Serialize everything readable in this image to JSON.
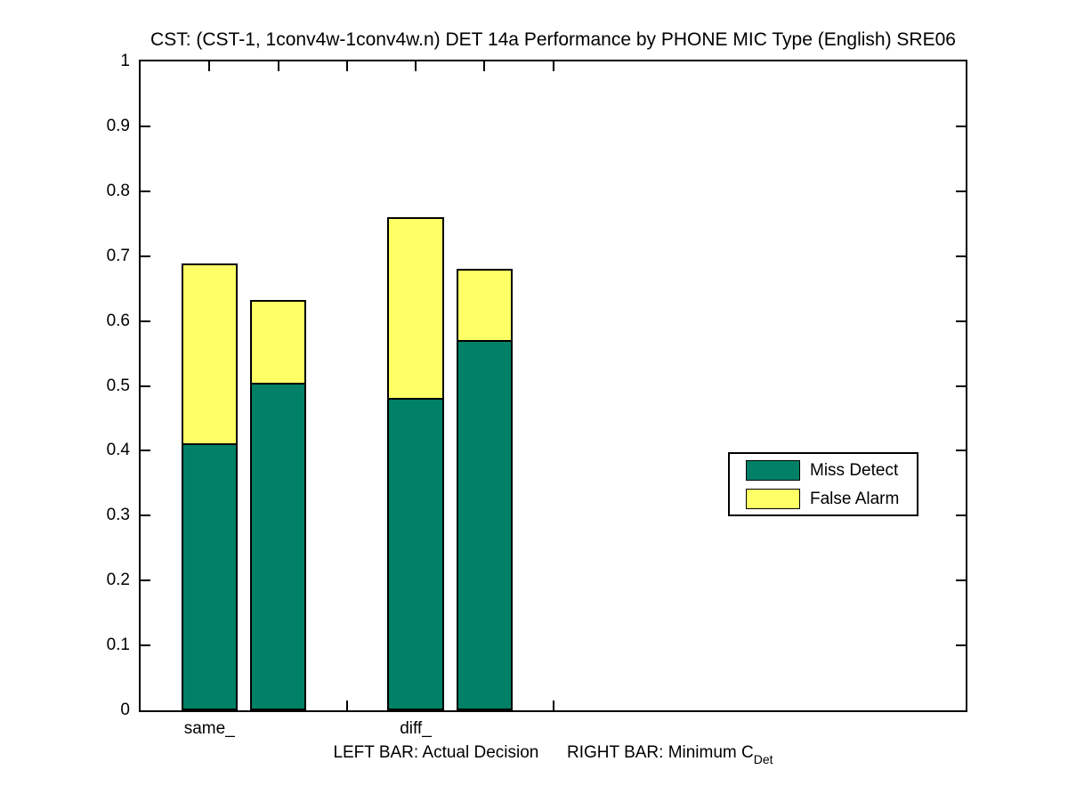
{
  "chart_data": {
    "type": "bar",
    "subtype": "stacked",
    "title": "CST: (CST-1, 1conv4w-1conv4w.n) DET 14a Performance by PHONE MIC Type (English) SRE06",
    "xlabel": "LEFT BAR: Actual Decision      RIGHT BAR: Minimum C",
    "xlabel_subscript": "Det",
    "ylim": [
      0,
      1
    ],
    "xlim": [
      0,
      12
    ],
    "grid": false,
    "y_ticks": [
      {
        "value": 0.0,
        "label": "0"
      },
      {
        "value": 0.1,
        "label": "0.1"
      },
      {
        "value": 0.2,
        "label": "0.2"
      },
      {
        "value": 0.3,
        "label": "0.3"
      },
      {
        "value": 0.4,
        "label": "0.4"
      },
      {
        "value": 0.5,
        "label": "0.5"
      },
      {
        "value": 0.6,
        "label": "0.6"
      },
      {
        "value": 0.7,
        "label": "0.7"
      },
      {
        "value": 0.8,
        "label": "0.8"
      },
      {
        "value": 0.9,
        "label": "0.9"
      },
      {
        "value": 1.0,
        "label": "1"
      }
    ],
    "x_ticks": [
      1,
      2,
      3,
      4,
      5,
      6
    ],
    "categories": [
      {
        "label": "same_",
        "tick_x": 1
      },
      {
        "label": "diff_",
        "tick_x": 4
      }
    ],
    "bar_width_units": 0.82,
    "bars": [
      {
        "group": "same_",
        "kind": "Actual Decision",
        "x": 1,
        "miss_detect": 0.412,
        "false_alarm": 0.276,
        "total": 0.688
      },
      {
        "group": "same_",
        "kind": "Minimum CDet",
        "x": 2,
        "miss_detect": 0.505,
        "false_alarm": 0.128,
        "total": 0.633
      },
      {
        "group": "diff_",
        "kind": "Actual Decision",
        "x": 4,
        "miss_detect": 0.482,
        "false_alarm": 0.278,
        "total": 0.76
      },
      {
        "group": "diff_",
        "kind": "Minimum CDet",
        "x": 5,
        "miss_detect": 0.57,
        "false_alarm": 0.111,
        "total": 0.681
      }
    ],
    "legend": {
      "position": "middle-right",
      "items": [
        {
          "label": "Miss Detect",
          "color": "#008066"
        },
        {
          "label": "False Alarm",
          "color": "#ffff66"
        }
      ]
    },
    "colors": {
      "miss_detect": "#008066",
      "false_alarm": "#ffff66",
      "axis": "#000000",
      "background": "#ffffff"
    }
  }
}
